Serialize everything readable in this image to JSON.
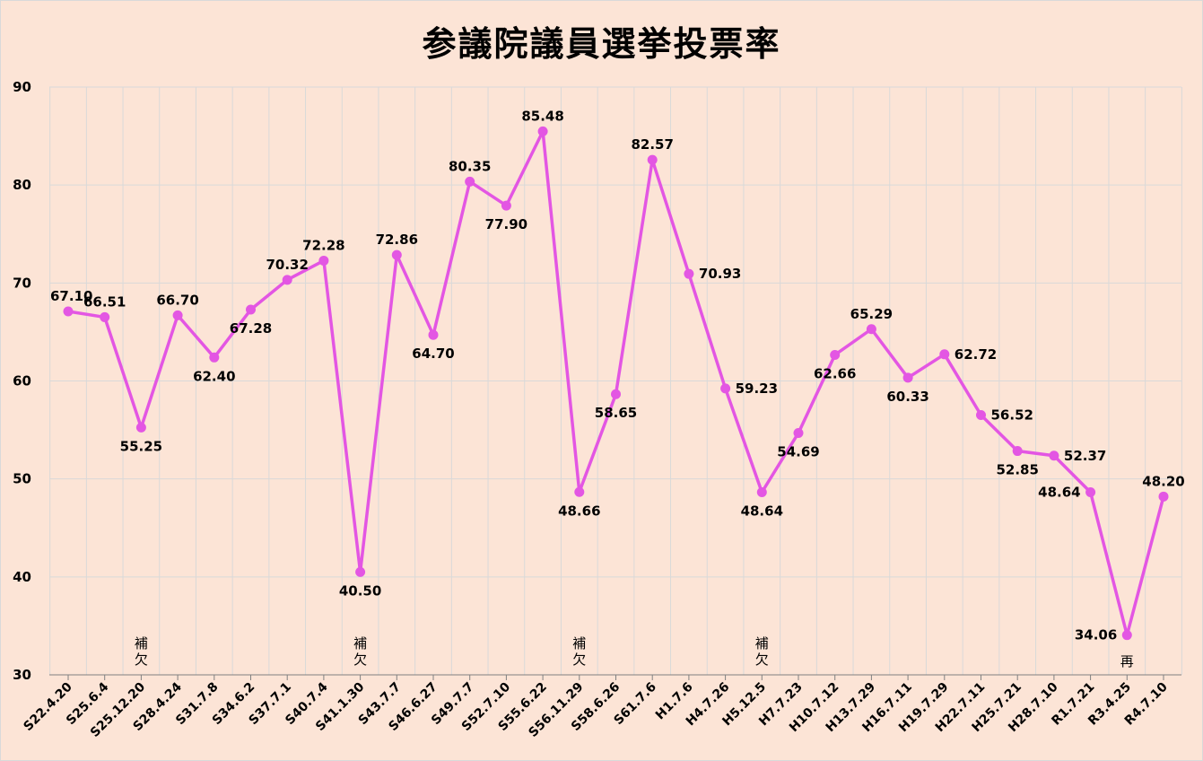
{
  "chart_data": {
    "type": "line",
    "title": "参議院議員選挙投票率",
    "xlabel": "",
    "ylabel": "",
    "ylim": [
      30,
      90
    ],
    "yticks": [
      30,
      40,
      50,
      60,
      70,
      80,
      90
    ],
    "grid": true,
    "color": "#e356e3",
    "categories": [
      "S22.4.20",
      "S25.6.4",
      "S25.12.20",
      "S28.4.24",
      "S31.7.8",
      "S34.6.2",
      "S37.7.1",
      "S40.7.4",
      "S41.1.30",
      "S43.7.7",
      "S46.6.27",
      "S49.7.7",
      "S52.7.10",
      "S55.6.22",
      "S56.11.29",
      "S58.6.26",
      "S61.7.6",
      "H1.7.6",
      "H4.7.26",
      "H5.12.5",
      "H7.7.23",
      "H10.7.12",
      "H13.7.29",
      "H16.7.11",
      "H19.7.29",
      "H22.7.11",
      "H25.7.21",
      "H28.7.10",
      "R1.7.21",
      "R3.4.25",
      "R4.7.10"
    ],
    "values": [
      67.1,
      66.51,
      55.25,
      66.7,
      62.4,
      67.28,
      70.32,
      72.28,
      40.5,
      72.86,
      64.7,
      80.35,
      77.9,
      85.48,
      48.66,
      58.65,
      82.57,
      70.93,
      59.23,
      48.64,
      54.69,
      62.66,
      65.29,
      60.33,
      62.72,
      56.52,
      52.85,
      52.37,
      48.64,
      34.06,
      48.2
    ],
    "data_labels": [
      "67.10",
      "66.51",
      "55.25",
      "66.70",
      "62.40",
      "67.28",
      "70.32",
      "72.28",
      "40.50",
      "72.86",
      "64.70",
      "80.35",
      "77.90",
      "85.48",
      "48.66",
      "58.65",
      "82.57",
      "70.93",
      "59.23",
      "48.64",
      "54.69",
      "62.66",
      "65.29",
      "60.33",
      "62.72",
      "56.52",
      "52.85",
      "52.37",
      "48.64",
      "34.06",
      "48.20"
    ],
    "label_pos": [
      "above",
      "above",
      "below",
      "above",
      "below",
      "below",
      "above",
      "above",
      "below",
      "above",
      "below",
      "above",
      "below",
      "above",
      "below",
      "below",
      "above",
      "right",
      "right",
      "below",
      "below",
      "below",
      "above",
      "below",
      "right",
      "right",
      "below",
      "right",
      "left",
      "left",
      "above"
    ],
    "annotations": [
      {
        "index": 2,
        "text": "補\n欠"
      },
      {
        "index": 8,
        "text": "補\n欠"
      },
      {
        "index": 14,
        "text": "補\n欠"
      },
      {
        "index": 19,
        "text": "補\n欠"
      },
      {
        "index": 29,
        "text": "再"
      }
    ]
  }
}
